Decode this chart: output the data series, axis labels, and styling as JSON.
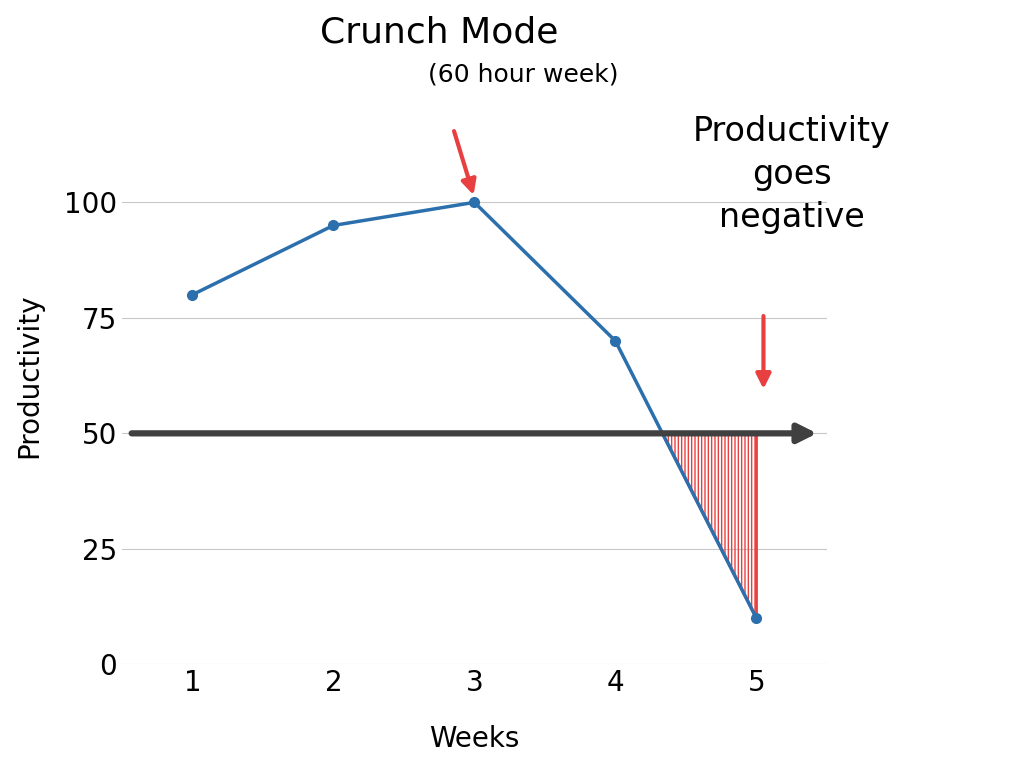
{
  "weeks": [
    1,
    2,
    3,
    4,
    5
  ],
  "productivity": [
    80,
    95,
    100,
    70,
    10
  ],
  "baseline_y": 50,
  "line_color": "#2c6fad",
  "baseline_color": "#404040",
  "hatch_color": "#e84040",
  "background_color": "#ffffff",
  "xlabel": "Weeks",
  "ylabel": "Productivity",
  "yticks": [
    0,
    25,
    50,
    75,
    100
  ],
  "xticks": [
    1,
    2,
    3,
    4,
    5
  ],
  "annotation_crunch_text": "Crunch Mode",
  "annotation_crunch_sub": "(60 hour week)",
  "annotation_neg_text": "Productivity\ngoes\nnegative",
  "arrow_color": "#e84040",
  "line_width": 2.5,
  "marker_size": 7,
  "xlim": [
    0.5,
    5.5
  ],
  "ylim": [
    0,
    125
  ],
  "grid_color": "#c8c8c8",
  "crunch_fontsize": 26,
  "crunch_sub_fontsize": 18,
  "neg_fontsize": 24,
  "axis_label_fontsize": 20,
  "tick_fontsize": 20
}
